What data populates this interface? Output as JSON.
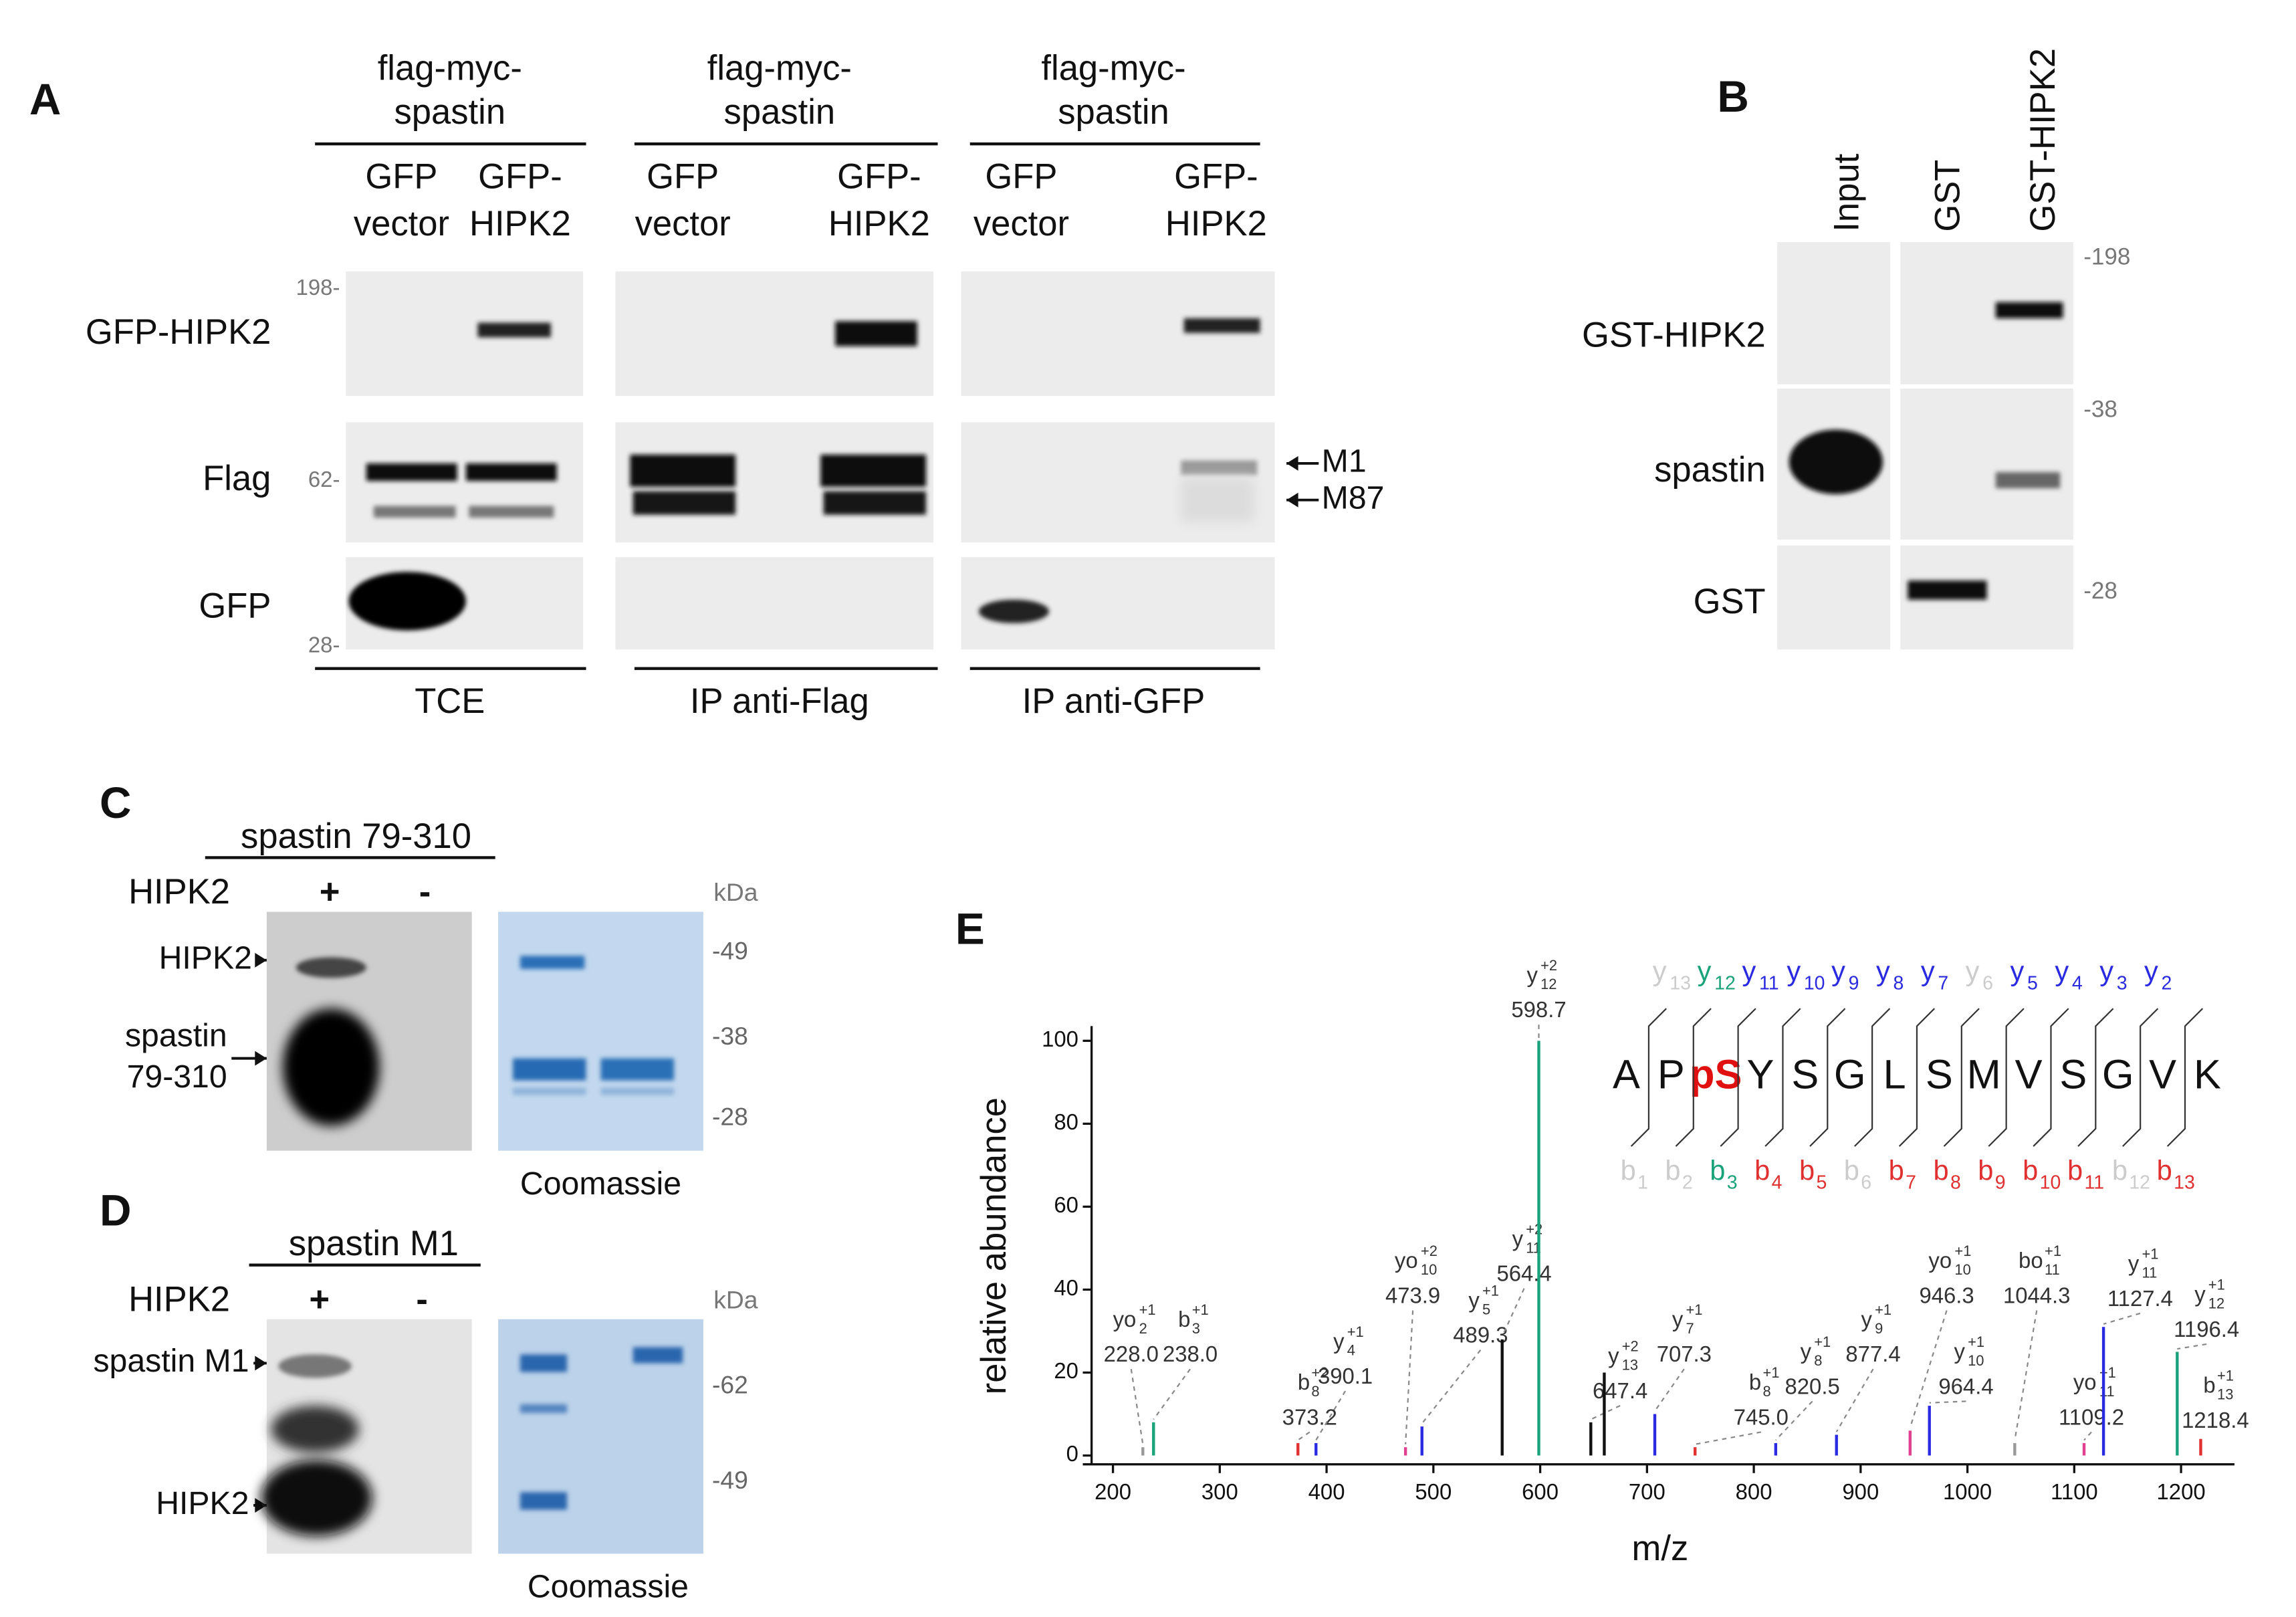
{
  "panels": {
    "A": {
      "label": "A",
      "groups": [
        {
          "header": [
            "flag-myc-",
            "spastin"
          ],
          "lanes": [
            [
              "GFP",
              "vector"
            ],
            [
              "GFP-",
              "HIPK2"
            ]
          ],
          "footer": "TCE"
        },
        {
          "header": [
            "flag-myc-",
            "spastin"
          ],
          "lanes": [
            [
              "GFP",
              "vector"
            ],
            [
              "GFP-",
              "HIPK2"
            ]
          ],
          "footer": "IP anti-Flag"
        },
        {
          "header": [
            "flag-myc-",
            "spastin"
          ],
          "lanes": [
            [
              "GFP",
              "vector"
            ],
            [
              "GFP-",
              "HIPK2"
            ]
          ],
          "footer": "IP anti-GFP"
        }
      ],
      "rows": [
        "GFP-HIPK2",
        "Flag",
        "GFP"
      ],
      "markers": [
        "198-",
        "62-",
        "28-"
      ],
      "arrows": [
        "M1",
        "M87"
      ]
    },
    "B": {
      "label": "B",
      "lanes": [
        "Input",
        "GST",
        "GST-HIPK2"
      ],
      "rows": [
        "GST-HIPK2",
        "spastin",
        "GST"
      ],
      "markers": [
        "-198",
        "-38",
        "-28"
      ]
    },
    "C": {
      "label": "C",
      "construct": "spastin 79-310",
      "kinase": "HIPK2",
      "lanes": [
        "+",
        "-"
      ],
      "bands": [
        [
          "HIPK2"
        ],
        [
          "spastin",
          "79-310"
        ]
      ],
      "unit": "kDa",
      "markers": [
        "-49",
        "-38",
        "-28"
      ],
      "stain": "Coomassie"
    },
    "D": {
      "label": "D",
      "construct": "spastin M1",
      "kinase": "HIPK2",
      "lanes": [
        "+",
        "-"
      ],
      "bands": [
        [
          "spastin M1"
        ],
        [
          "HIPK2"
        ]
      ],
      "unit": "kDa",
      "markers": [
        "-62",
        "-49"
      ],
      "stain": "Coomassie"
    }
  },
  "chart_data": {
    "type": "spectrum",
    "label": "E",
    "xlabel": "m/z",
    "ylabel": "relative abundance",
    "xlim": [
      180,
      1250
    ],
    "ylim": [
      0,
      100
    ],
    "xticks": [
      200,
      300,
      400,
      500,
      600,
      700,
      800,
      900,
      1000,
      1100,
      1200
    ],
    "yticks": [
      0,
      20,
      40,
      60,
      80,
      100
    ],
    "x": [
      228.0,
      238.0,
      373.2,
      390.1,
      473.9,
      489.3,
      564.4,
      598.7,
      647.4,
      707.3,
      745.0,
      820.5,
      877.4,
      946.3,
      964.4,
      1044.3,
      1109.2,
      1127.4,
      1196.4,
      1218.4,
      660
    ],
    "values": [
      2,
      8,
      3,
      3,
      2,
      7,
      28,
      100,
      8,
      10,
      2,
      3,
      5,
      6,
      12,
      3,
      3,
      31,
      25,
      4,
      20
    ],
    "colors": [
      "#999999",
      "#1aa37a",
      "#e03030",
      "#2a2ae0",
      "#e0408f",
      "#2a2ae0",
      "#111111",
      "#1aa37a",
      "#111111",
      "#2a2ae0",
      "#e03030",
      "#2a2ae0",
      "#2a2ae0",
      "#e0408f",
      "#2a2ae0",
      "#999999",
      "#e0408f",
      "#2a2ae0",
      "#1aa37a",
      "#e03030",
      "#111111"
    ],
    "x_labels": [
      "228.0",
      "238.0",
      "373.2",
      "390.1",
      "473.9",
      "489.3",
      "564.4",
      "598.7",
      "647.4",
      "707.3",
      "745.0",
      "820.5",
      "877.4",
      "946.3",
      "964.4",
      "1044.3",
      "1109.2",
      "1127.4",
      "1196.4",
      "1218.4",
      null
    ],
    "ions": [
      {
        "base": "yo",
        "sub": "2",
        "sup": "+1"
      },
      {
        "base": "b",
        "sub": "3",
        "sup": "+1"
      },
      {
        "base": "b",
        "sub": "8",
        "sup": "+2"
      },
      {
        "base": "y",
        "sub": "4",
        "sup": "+1"
      },
      {
        "base": "yo",
        "sub": "10",
        "sup": "+2"
      },
      {
        "base": "y",
        "sub": "5",
        "sup": "+1"
      },
      {
        "base": "y",
        "sub": "11",
        "sup": "+2"
      },
      {
        "base": "y",
        "sub": "12",
        "sup": "+2"
      },
      {
        "base": "y",
        "sub": "13",
        "sup": "+2"
      },
      {
        "base": "y",
        "sub": "7",
        "sup": "+1"
      },
      {
        "base": "b",
        "sub": "8",
        "sup": "+1"
      },
      {
        "base": "y",
        "sub": "8",
        "sup": "+1"
      },
      {
        "base": "y",
        "sub": "9",
        "sup": "+1"
      },
      {
        "base": "yo",
        "sub": "10",
        "sup": "+1"
      },
      {
        "base": "y",
        "sub": "10",
        "sup": "+1"
      },
      {
        "base": "bo",
        "sub": "11",
        "sup": "+1"
      },
      {
        "base": "yo",
        "sub": "11",
        "sup": "+1"
      },
      {
        "base": "y",
        "sub": "11",
        "sup": "+1"
      },
      {
        "base": "y",
        "sub": "12",
        "sup": "+1"
      },
      {
        "base": "b",
        "sub": "13",
        "sup": "+1"
      },
      null
    ],
    "peptide": {
      "residues": [
        "A",
        "P",
        "pS",
        "Y",
        "S",
        "G",
        "L",
        "S",
        "M",
        "V",
        "S",
        "G",
        "V",
        "K"
      ],
      "residue_colors": [
        "#111111",
        "#111111",
        "#e01010",
        "#111111",
        "#111111",
        "#111111",
        "#111111",
        "#111111",
        "#111111",
        "#111111",
        "#111111",
        "#111111",
        "#111111",
        "#111111"
      ],
      "top_ions": [
        {
          "base": "y",
          "sub": "13",
          "color": "#cccccc"
        },
        {
          "base": "y",
          "sub": "12",
          "color": "#1aa37a"
        },
        {
          "base": "y",
          "sub": "11",
          "color": "#2a2ae0"
        },
        {
          "base": "y",
          "sub": "10",
          "color": "#2a2ae0"
        },
        {
          "base": "y",
          "sub": "9",
          "color": "#2a2ae0"
        },
        {
          "base": "y",
          "sub": "8",
          "color": "#2a2ae0"
        },
        {
          "base": "y",
          "sub": "7",
          "color": "#2a2ae0"
        },
        {
          "base": "y",
          "sub": "6",
          "color": "#cccccc"
        },
        {
          "base": "y",
          "sub": "5",
          "color": "#2a2ae0"
        },
        {
          "base": "y",
          "sub": "4",
          "color": "#2a2ae0"
        },
        {
          "base": "y",
          "sub": "3",
          "color": "#2a2ae0"
        },
        {
          "base": "y",
          "sub": "2",
          "color": "#2a2ae0"
        }
      ],
      "bottom_ions": [
        {
          "base": "b",
          "sub": "1",
          "color": "#cccccc"
        },
        {
          "base": "b",
          "sub": "2",
          "color": "#cccccc"
        },
        {
          "base": "b",
          "sub": "3",
          "color": "#1aa37a"
        },
        {
          "base": "b",
          "sub": "4",
          "color": "#e03030"
        },
        {
          "base": "b",
          "sub": "5",
          "color": "#e03030"
        },
        {
          "base": "b",
          "sub": "6",
          "color": "#cccccc"
        },
        {
          "base": "b",
          "sub": "7",
          "color": "#e03030"
        },
        {
          "base": "b",
          "sub": "8",
          "color": "#e03030"
        },
        {
          "base": "b",
          "sub": "9",
          "color": "#e03030"
        },
        {
          "base": "b",
          "sub": "10",
          "color": "#e03030"
        },
        {
          "base": "b",
          "sub": "11",
          "color": "#e03030"
        },
        {
          "base": "b",
          "sub": "12",
          "color": "#cccccc"
        },
        {
          "base": "b",
          "sub": "13",
          "color": "#e03030"
        }
      ]
    }
  }
}
